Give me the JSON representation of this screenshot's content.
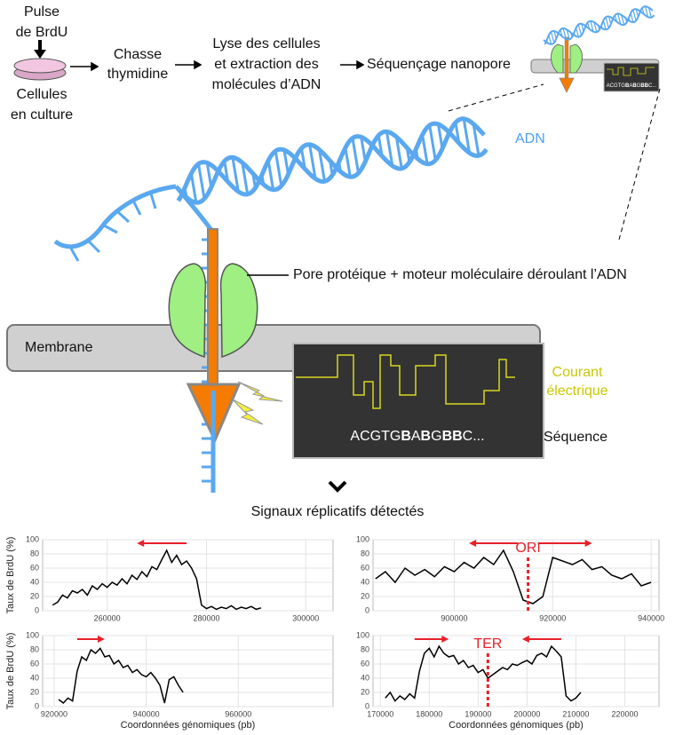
{
  "diagram": {
    "pulse": [
      "Pulse",
      "de BrdU"
    ],
    "cells": [
      "Cellules",
      "en culture"
    ],
    "chase": [
      "Chasse",
      "thymidine"
    ],
    "lysis": [
      "Lyse des cellules",
      "et extraction des",
      "molécules d’ADN"
    ],
    "sequencing": "Séquençage nanopore",
    "dna": "ADN",
    "pore": "Pore protéique + moteur moléculaire déroulant l’ADN",
    "membrane": "Membrane",
    "current": [
      "Courant",
      "électrique"
    ],
    "sequence_label": "Séquence",
    "sequence": [
      {
        "text": "ACGTG",
        "bold": false
      },
      {
        "text": "B",
        "bold": true
      },
      {
        "text": "A",
        "bold": false
      },
      {
        "text": "B",
        "bold": true
      },
      {
        "text": "G",
        "bold": false
      },
      {
        "text": "BB",
        "bold": true
      },
      {
        "text": "C...",
        "bold": false
      }
    ],
    "signals": "Signaux réplicatifs détectés"
  },
  "chart_data": [
    {
      "type": "line",
      "ylabel": "Taux de BrdU (%)",
      "color": "#000000",
      "grid": true,
      "xlim": [
        247000,
        305500
      ],
      "xticks": [
        260000,
        280000,
        300000
      ],
      "ylim": [
        0,
        100
      ],
      "yticks": [
        0,
        20,
        40,
        60,
        80,
        100
      ],
      "x": [
        249000,
        250000,
        251000,
        252000,
        253000,
        254000,
        255000,
        256000,
        257000,
        258000,
        259000,
        260000,
        261000,
        262000,
        263000,
        264000,
        265000,
        266000,
        267000,
        268000,
        269000,
        270000,
        271000,
        272000,
        273000,
        274000,
        275000,
        276000,
        277000,
        278000,
        279000,
        280000,
        281000,
        282000,
        283000,
        284000,
        285000,
        286000,
        287000,
        288000,
        289000,
        290000,
        291000
      ],
      "values": [
        8,
        12,
        22,
        18,
        28,
        25,
        30,
        22,
        35,
        30,
        38,
        33,
        40,
        36,
        45,
        38,
        50,
        44,
        55,
        48,
        62,
        58,
        72,
        85,
        68,
        78,
        65,
        70,
        60,
        45,
        8,
        3,
        6,
        2,
        5,
        3,
        7,
        2,
        5,
        3,
        6,
        2,
        4
      ],
      "arrow_color": "#e8202a",
      "arrows": [
        {
          "from": 276000,
          "to": 266000
        }
      ]
    },
    {
      "type": "line",
      "color": "#000000",
      "grid": true,
      "xlim": [
        883500,
        941600
      ],
      "xticks": [
        900000,
        920000,
        940000
      ],
      "ylim": [
        0,
        100
      ],
      "yticks": [
        0,
        20,
        40,
        60,
        80,
        100
      ],
      "x": [
        884000,
        886000,
        888000,
        890000,
        892000,
        894000,
        896000,
        898000,
        900000,
        902000,
        904000,
        906000,
        908000,
        910000,
        912000,
        914000,
        916000,
        918000,
        920000,
        922000,
        924000,
        926000,
        928000,
        930000,
        932000,
        934000,
        936000,
        938000,
        940000
      ],
      "values": [
        45,
        55,
        40,
        60,
        50,
        58,
        48,
        62,
        55,
        68,
        60,
        75,
        65,
        85,
        55,
        15,
        10,
        20,
        75,
        70,
        65,
        72,
        58,
        62,
        50,
        45,
        52,
        35,
        40
      ],
      "arrow_color": "#e8202a",
      "arrows": [
        {
          "from": 913000,
          "to": 903000
        },
        {
          "from": 917000,
          "to": 928000
        }
      ],
      "annotations": [
        {
          "text": "ORI",
          "x": 915000
        }
      ]
    },
    {
      "type": "line",
      "ylabel": "Taux de BrdU (%)",
      "xlabel": "Coordonnées génomiques (pb)",
      "color": "#000000",
      "grid": true,
      "xlim": [
        917500,
        980600
      ],
      "xticks": [
        920000,
        940000,
        960000
      ],
      "ylim": [
        0,
        100
      ],
      "yticks": [
        0,
        20,
        40,
        60,
        80,
        100
      ],
      "x": [
        921000,
        922000,
        923000,
        924000,
        925000,
        926000,
        927000,
        928000,
        929000,
        930000,
        931000,
        932000,
        933000,
        934000,
        935000,
        936000,
        937000,
        938000,
        939000,
        940000,
        941000,
        942000,
        943000,
        944000,
        945000,
        946000,
        947000,
        948000
      ],
      "values": [
        10,
        5,
        12,
        8,
        50,
        70,
        65,
        80,
        75,
        82,
        70,
        72,
        60,
        65,
        55,
        58,
        48,
        52,
        45,
        42,
        48,
        40,
        30,
        5,
        38,
        42,
        30,
        20
      ],
      "arrow_color": "#e8202a",
      "arrows": [
        {
          "from": 925000,
          "to": 931000
        }
      ]
    },
    {
      "type": "line",
      "xlabel": "Coordonnées génomiques (pb)",
      "color": "#000000",
      "grid": true,
      "xlim": [
        168500,
        227000
      ],
      "xticks": [
        170000,
        180000,
        190000,
        200000,
        210000,
        220000
      ],
      "ylim": [
        0,
        100
      ],
      "yticks": [
        0,
        20,
        40,
        60,
        80,
        100
      ],
      "x": [
        171000,
        172000,
        173000,
        174000,
        175000,
        176000,
        177000,
        178000,
        179000,
        180000,
        181000,
        182000,
        183000,
        184000,
        185000,
        186000,
        187000,
        188000,
        189000,
        190000,
        191000,
        192000,
        193000,
        194000,
        195000,
        196000,
        197000,
        198000,
        199000,
        200000,
        201000,
        202000,
        203000,
        204000,
        205000,
        206000,
        207000,
        208000,
        209000,
        210000,
        211000
      ],
      "values": [
        12,
        20,
        8,
        15,
        10,
        18,
        12,
        50,
        75,
        82,
        70,
        85,
        75,
        70,
        72,
        60,
        65,
        55,
        58,
        48,
        52,
        40,
        45,
        50,
        55,
        52,
        60,
        58,
        62,
        65,
        60,
        72,
        75,
        70,
        85,
        78,
        70,
        15,
        8,
        12,
        20
      ],
      "arrow_color": "#e8202a",
      "arrows": [
        {
          "from": 177000,
          "to": 184000
        },
        {
          "from": 207000,
          "to": 199000
        }
      ],
      "annotations": [
        {
          "text": "TER",
          "x": 192000
        }
      ]
    }
  ]
}
